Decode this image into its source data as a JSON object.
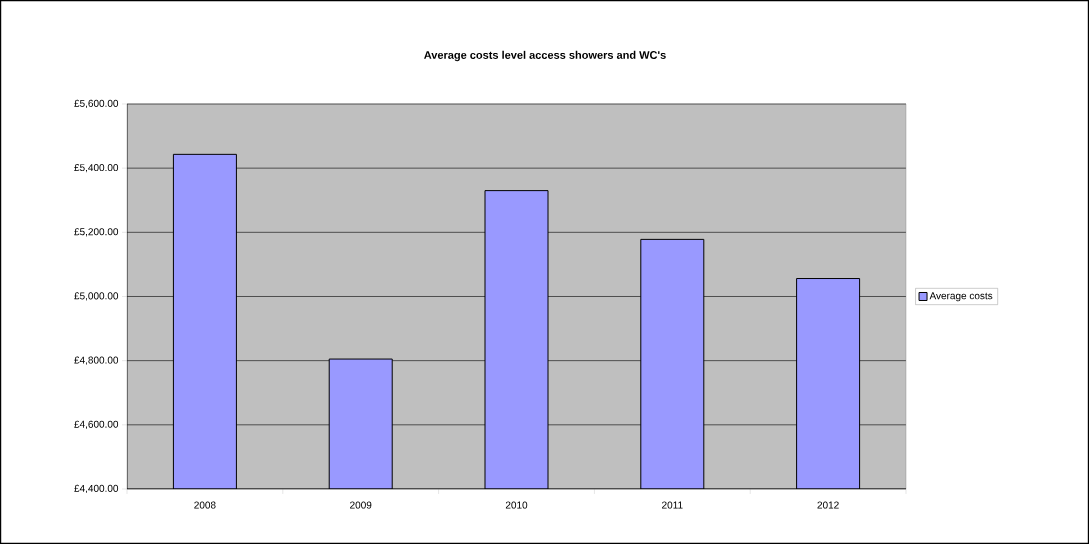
{
  "chart_data": {
    "type": "bar",
    "title": "Average costs level access showers and WC's",
    "categories": [
      "2008",
      "2009",
      "2010",
      "2011",
      "2012"
    ],
    "series": [
      {
        "name": "Average costs",
        "color": "#9999ff",
        "values": [
          5443,
          4805,
          5330,
          5178,
          5056
        ]
      }
    ],
    "ylim": [
      4400,
      5600
    ],
    "yticks": [
      {
        "value": 4400,
        "label": "£4,400.00"
      },
      {
        "value": 4600,
        "label": "£4,600.00"
      },
      {
        "value": 4800,
        "label": "£4,800.00"
      },
      {
        "value": 5000,
        "label": "£5,000.00"
      },
      {
        "value": 5200,
        "label": "£5,200.00"
      },
      {
        "value": 5400,
        "label": "£5,400.00"
      },
      {
        "value": 5600,
        "label": "£5,600.00"
      }
    ],
    "grid": "y",
    "legend": "right"
  }
}
